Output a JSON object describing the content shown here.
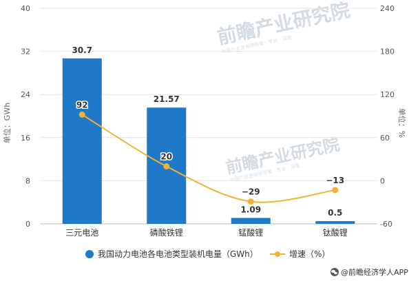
{
  "chart_data": {
    "type": "bar",
    "categories": [
      "三元电池",
      "磷酸铁锂",
      "锰酸锂",
      "钛酸锂"
    ],
    "series": [
      {
        "name": "我国动力电池各电池类型装机电量（GWh）",
        "type": "bar",
        "axis": "left",
        "values": [
          30.7,
          21.57,
          1.09,
          0.5
        ],
        "labels": [
          "30.7",
          "21.57",
          "1.09",
          "0.5"
        ],
        "color": "#1f78c8"
      },
      {
        "name": "增速（%）",
        "type": "line",
        "axis": "right",
        "values": [
          92,
          20,
          -29,
          -13
        ],
        "labels": [
          "92",
          "20",
          "−29",
          "−13"
        ],
        "color": "#f2b233"
      }
    ],
    "y_left": {
      "label": "单位：GWh",
      "ylim": [
        0,
        40
      ],
      "ticks": [
        0,
        8,
        16,
        24,
        32,
        40
      ]
    },
    "y_right": {
      "label": "单位：%",
      "ylim": [
        -60,
        240
      ],
      "ticks": [
        -60,
        0,
        60,
        120,
        180,
        240
      ]
    },
    "grid": true,
    "legend_position": "bottom"
  },
  "watermark": {
    "brand": "前瞻产业研究院",
    "sub": "中国产业咨询领导者 · 专业 · 深度"
  },
  "footer": {
    "icon": "wechat-icon",
    "text": "@前瞻经济学人APP"
  },
  "colors": {
    "bar": "#1f78c8",
    "line": "#f2b233",
    "grid": "#e4e4e4",
    "axis": "#bbbbbb"
  }
}
